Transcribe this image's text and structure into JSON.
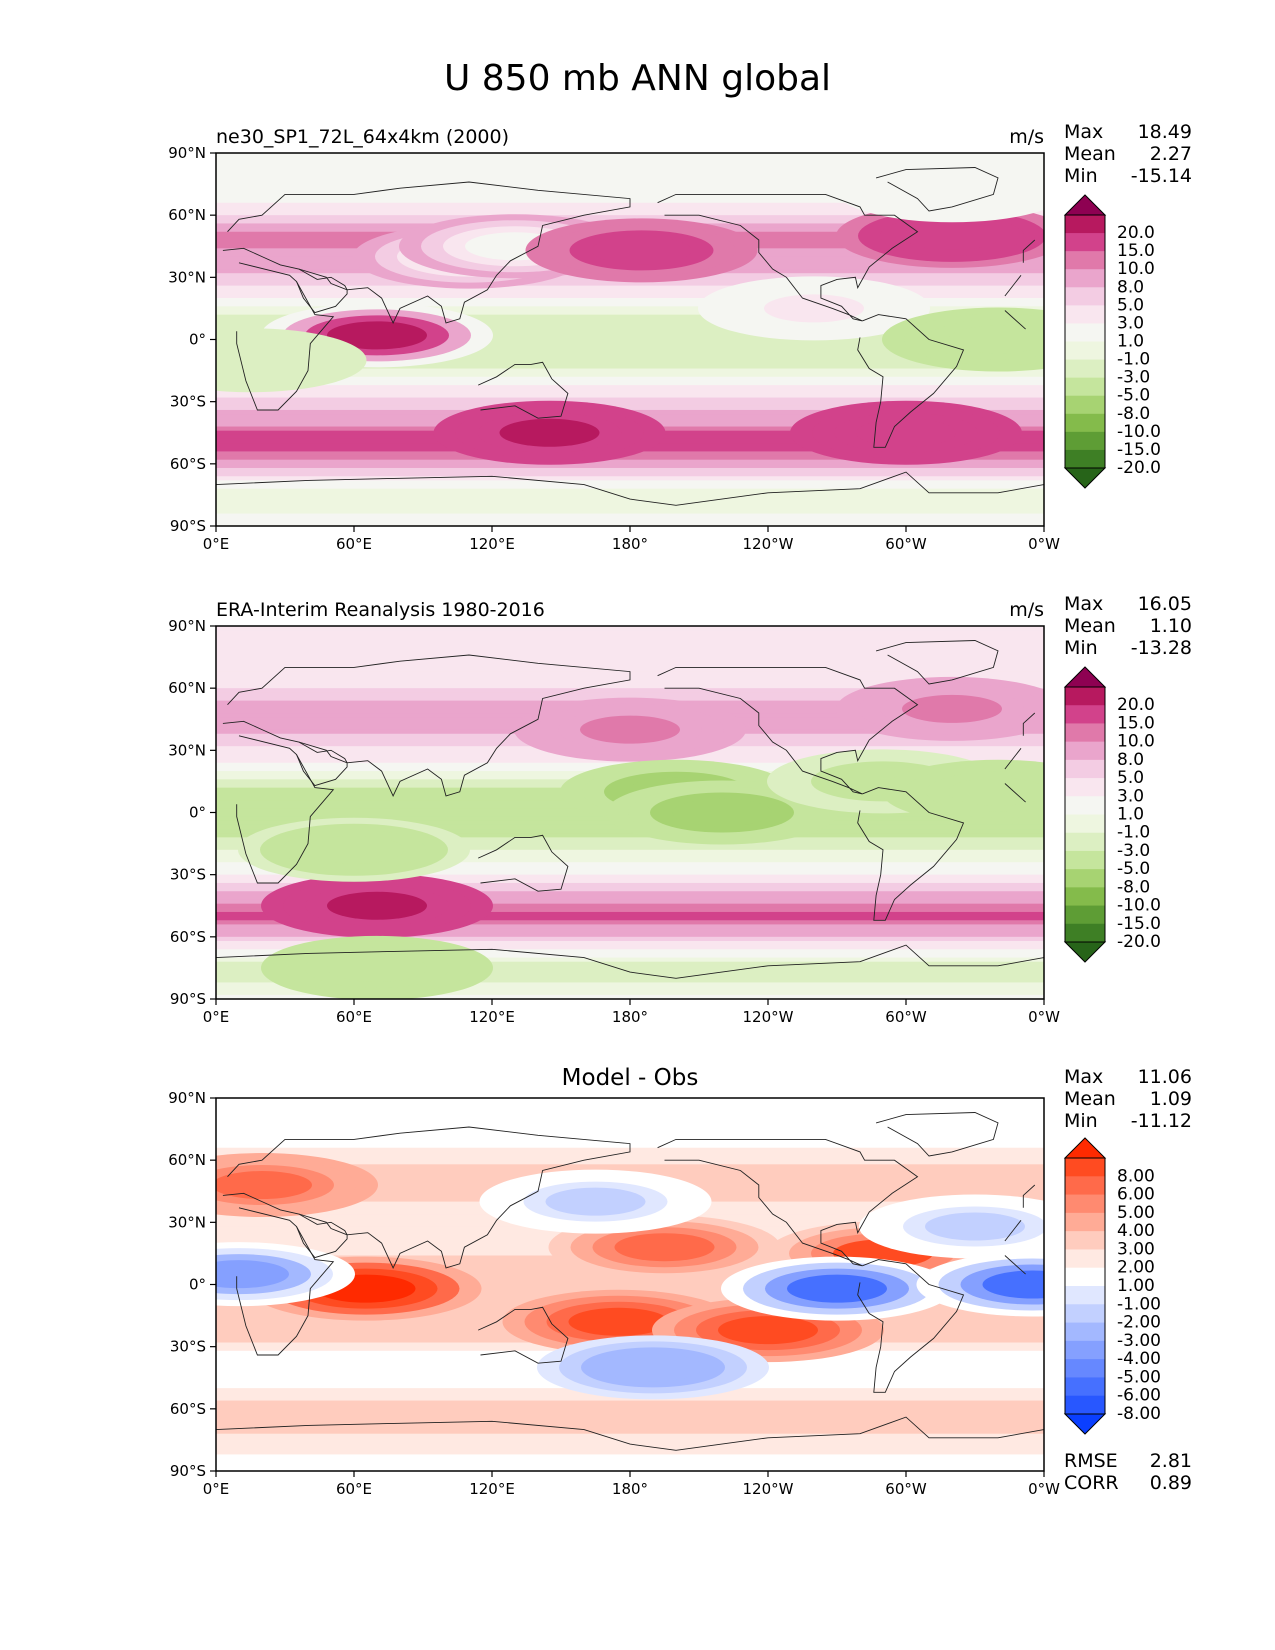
{
  "figure_title": "U 850 mb ANN global",
  "colormaps": {
    "piyg": [
      "#8e0152",
      "#b7195f",
      "#d2428b",
      "#e079aa",
      "#eaa5cc",
      "#f3cce3",
      "#f9e6ef",
      "#f5f6f2",
      "#eef6e0",
      "#dcefc2",
      "#c5e59d",
      "#a7d372",
      "#84bb4b",
      "#5e9d35",
      "#3e7f25",
      "#276419"
    ],
    "diff": [
      "#ff2a00",
      "#ff4b21",
      "#ff6a4a",
      "#ff8a70",
      "#ffab96",
      "#ffccbe",
      "#ffe9e2",
      "#ffffff",
      "#e0e7ff",
      "#c2d0ff",
      "#a3b8ff",
      "#85a0ff",
      "#6688ff",
      "#4670ff",
      "#2857ff",
      "#0a3fff"
    ]
  },
  "chart_data": [
    {
      "type": "heatmap",
      "map": "global-contour",
      "panel_title": "ne30_SP1_72L_64x4km (2000)",
      "units": "m/s",
      "stats": {
        "max_label": "Max",
        "max": "18.49",
        "mean_label": "Mean",
        "mean": "2.27",
        "min_label": "Min",
        "min": "-15.14"
      },
      "colorbar_levels": [
        "20.0",
        "15.0",
        "10.0",
        "8.0",
        "5.0",
        "3.0",
        "1.0",
        "-1.0",
        "-3.0",
        "-5.0",
        "-8.0",
        "-10.0",
        "-15.0",
        "-20.0"
      ],
      "colormap": "piyg",
      "xlim": [
        0,
        360
      ],
      "ylim": [
        -90,
        90
      ],
      "yticks": [
        "90°N",
        "60°N",
        "30°N",
        "0°",
        "30°S",
        "60°S",
        "90°S"
      ],
      "xticks": [
        "0°E",
        "60°E",
        "120°E",
        "180°",
        "120°W",
        "60°W",
        "0°W"
      ],
      "zonal_mean_profile": [
        {
          "lat": -90,
          "u": 0
        },
        {
          "lat": -75,
          "u": -3
        },
        {
          "lat": -62,
          "u": 5
        },
        {
          "lat": -50,
          "u": 13
        },
        {
          "lat": -38,
          "u": 6
        },
        {
          "lat": -25,
          "u": 2
        },
        {
          "lat": -12,
          "u": -4
        },
        {
          "lat": 0,
          "u": -5
        },
        {
          "lat": 10,
          "u": -4
        },
        {
          "lat": 22,
          "u": 2
        },
        {
          "lat": 38,
          "u": 7
        },
        {
          "lat": 50,
          "u": 9
        },
        {
          "lat": 62,
          "u": 2
        },
        {
          "lat": 75,
          "u": -1
        },
        {
          "lat": 90,
          "u": 0
        }
      ],
      "features": [
        {
          "lon": 70,
          "lat": 2,
          "u": 15
        },
        {
          "lon": 110,
          "lat": 40,
          "u": 0
        },
        {
          "lon": 130,
          "lat": 45,
          "u": 0
        },
        {
          "lon": 185,
          "lat": 43,
          "u": 12
        },
        {
          "lon": 320,
          "lat": 50,
          "u": 12
        },
        {
          "lon": 320,
          "lat": 72,
          "u": 0
        },
        {
          "lon": 145,
          "lat": -45,
          "u": 15
        },
        {
          "lon": 300,
          "lat": -45,
          "u": 14
        },
        {
          "lon": 260,
          "lat": 15,
          "u": 1
        },
        {
          "lon": 15,
          "lat": -10,
          "u": -5
        },
        {
          "lon": 340,
          "lat": 0,
          "u": -7
        }
      ]
    },
    {
      "type": "heatmap",
      "map": "global-contour",
      "panel_title": "ERA-Interim Reanalysis 1980-2016",
      "units": "m/s",
      "stats": {
        "max_label": "Max",
        "max": "16.05",
        "mean_label": "Mean",
        "mean": "1.10",
        "min_label": "Min",
        "min": "-13.28"
      },
      "colorbar_levels": [
        "20.0",
        "15.0",
        "10.0",
        "8.0",
        "5.0",
        "3.0",
        "1.0",
        "-1.0",
        "-3.0",
        "-5.0",
        "-8.0",
        "-10.0",
        "-15.0",
        "-20.0"
      ],
      "colormap": "piyg",
      "xlim": [
        0,
        360
      ],
      "ylim": [
        -90,
        90
      ],
      "yticks": [
        "90°N",
        "60°N",
        "30°N",
        "0°",
        "30°S",
        "60°S",
        "90°S"
      ],
      "xticks": [
        "0°E",
        "60°E",
        "120°E",
        "180°",
        "120°W",
        "60°W",
        "0°W"
      ],
      "zonal_mean_profile": [
        {
          "lat": -90,
          "u": 0
        },
        {
          "lat": -76,
          "u": -5
        },
        {
          "lat": -64,
          "u": 2
        },
        {
          "lat": -50,
          "u": 11
        },
        {
          "lat": -38,
          "u": 5
        },
        {
          "lat": -25,
          "u": -1
        },
        {
          "lat": -12,
          "u": -5
        },
        {
          "lat": 0,
          "u": -6
        },
        {
          "lat": 12,
          "u": -5
        },
        {
          "lat": 25,
          "u": 1
        },
        {
          "lat": 38,
          "u": 5
        },
        {
          "lat": 50,
          "u": 6
        },
        {
          "lat": 62,
          "u": 2
        },
        {
          "lat": 78,
          "u": 1
        },
        {
          "lat": 90,
          "u": 1
        }
      ],
      "features": [
        {
          "lon": 70,
          "lat": -45,
          "u": 15
        },
        {
          "lon": 180,
          "lat": 40,
          "u": 8
        },
        {
          "lon": 320,
          "lat": 50,
          "u": 8
        },
        {
          "lon": 200,
          "lat": 10,
          "u": -9
        },
        {
          "lon": 220,
          "lat": 0,
          "u": -10
        },
        {
          "lon": 290,
          "lat": 15,
          "u": -6
        },
        {
          "lon": 60,
          "lat": -18,
          "u": -8
        },
        {
          "lon": 340,
          "lat": 10,
          "u": -8
        },
        {
          "lon": 70,
          "lat": -75,
          "u": -8
        }
      ]
    },
    {
      "type": "heatmap",
      "map": "global-contour",
      "panel_title": "Model - Obs",
      "units": "",
      "stats": {
        "max_label": "Max",
        "max": "11.06",
        "mean_label": "Mean",
        "mean": "1.09",
        "min_label": "Min",
        "min": "-11.12",
        "rmse_label": "RMSE",
        "rmse": "2.81",
        "corr_label": "CORR",
        "corr": "0.89"
      },
      "colorbar_levels": [
        "8.00",
        "6.00",
        "5.00",
        "4.00",
        "3.00",
        "2.00",
        "1.00",
        "-1.00",
        "-2.00",
        "-3.00",
        "-4.00",
        "-5.00",
        "-6.00",
        "-8.00"
      ],
      "colormap": "diff",
      "xlim": [
        0,
        360
      ],
      "ylim": [
        -90,
        90
      ],
      "yticks": [
        "90°N",
        "60°N",
        "30°N",
        "0°",
        "30°S",
        "60°S",
        "90°S"
      ],
      "xticks": [
        "0°E",
        "60°E",
        "120°E",
        "180°",
        "120°W",
        "60°W",
        "0°W"
      ],
      "zonal_mean_profile": [
        {
          "lat": -90,
          "u": 0
        },
        {
          "lat": -72,
          "u": 2
        },
        {
          "lat": -62,
          "u": 3
        },
        {
          "lat": -50,
          "u": 1
        },
        {
          "lat": -40,
          "u": -1
        },
        {
          "lat": -28,
          "u": 2
        },
        {
          "lat": -14,
          "u": 3
        },
        {
          "lat": 0,
          "u": 2
        },
        {
          "lat": 14,
          "u": 2
        },
        {
          "lat": 28,
          "u": 1
        },
        {
          "lat": 40,
          "u": 2
        },
        {
          "lat": 52,
          "u": 3
        },
        {
          "lat": 65,
          "u": 1
        },
        {
          "lat": 80,
          "u": -1
        },
        {
          "lat": 90,
          "u": 0
        }
      ],
      "features": [
        {
          "lon": 65,
          "lat": -2,
          "u": 9
        },
        {
          "lon": 175,
          "lat": -18,
          "u": 6
        },
        {
          "lon": 240,
          "lat": -22,
          "u": 6
        },
        {
          "lon": 195,
          "lat": 18,
          "u": 5
        },
        {
          "lon": 20,
          "lat": 48,
          "u": 5
        },
        {
          "lon": 290,
          "lat": 15,
          "u": 6
        },
        {
          "lon": 270,
          "lat": -2,
          "u": -7
        },
        {
          "lon": 355,
          "lat": 0,
          "u": -7
        },
        {
          "lon": 10,
          "lat": 5,
          "u": -5
        },
        {
          "lon": 190,
          "lat": -40,
          "u": -4
        },
        {
          "lon": 165,
          "lat": 40,
          "u": -3
        },
        {
          "lon": 330,
          "lat": 28,
          "u": -3
        }
      ]
    }
  ]
}
